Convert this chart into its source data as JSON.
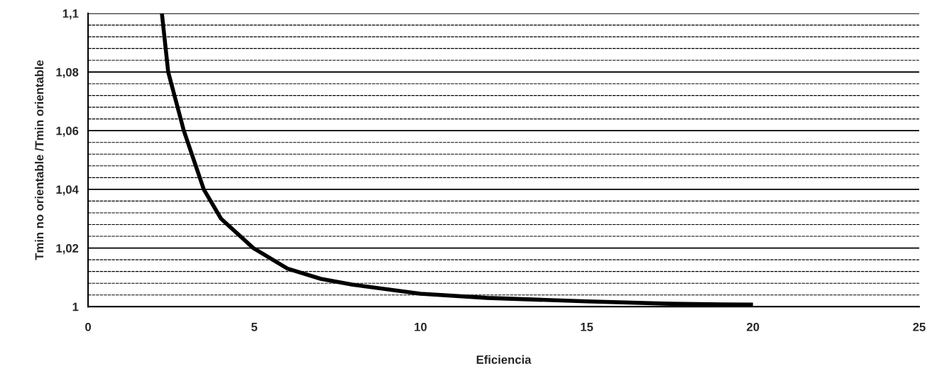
{
  "chart_data": {
    "type": "line",
    "xlabel": "Eficiencia",
    "ylabel": "Tmin no orientable /Tmin orientable",
    "x": [
      2.22,
      2.41,
      2.88,
      3.48,
      4,
      4.97,
      6,
      7,
      7.96,
      10,
      12,
      15,
      17.5,
      20
    ],
    "series": [
      {
        "color": "#000000",
        "values": [
          1.1,
          1.08,
          1.06,
          1.04,
          1.03,
          1.02,
          1.013,
          1.0095,
          1.0075,
          1.0044,
          1.003,
          1.0018,
          1.001,
          1.0007
        ]
      }
    ],
    "xlim": [
      0,
      25
    ],
    "xticks": [
      0,
      5,
      10,
      15,
      20,
      25
    ],
    "ylim": [
      1,
      1.1
    ],
    "yticks": [
      1,
      {
        "value": 1.004,
        "label": null
      },
      {
        "value": 1.008,
        "label": null
      },
      {
        "value": 1.012,
        "label": null
      },
      {
        "value": 1.016,
        "label": null
      },
      {
        "value": 1.02,
        "label": "1,02"
      },
      {
        "value": 1.024,
        "label": null
      },
      {
        "value": 1.028,
        "label": null
      },
      {
        "value": 1.032,
        "label": null
      },
      {
        "value": 1.036,
        "label": null
      },
      {
        "value": 1.04,
        "label": "1,04"
      },
      {
        "value": 1.044,
        "label": null
      },
      {
        "value": 1.048,
        "label": null
      },
      {
        "value": 1.052,
        "label": null
      },
      {
        "value": 1.056,
        "label": null
      },
      {
        "value": 1.06,
        "label": "1,06"
      },
      {
        "value": 1.064,
        "label": null
      },
      {
        "value": 1.068,
        "label": null
      },
      {
        "value": 1.072,
        "label": null
      },
      {
        "value": 1.076,
        "label": null
      },
      {
        "value": 1.08,
        "label": "1,08"
      },
      {
        "value": 1.084,
        "label": null
      },
      {
        "value": 1.088,
        "label": null
      },
      {
        "value": 1.092,
        "label": null
      },
      {
        "value": 1.096,
        "label": null
      },
      {
        "value": 1.1,
        "label": "1,1"
      }
    ],
    "grid": "y",
    "marker": "none",
    "line_style": "solid",
    "legend": false
  }
}
